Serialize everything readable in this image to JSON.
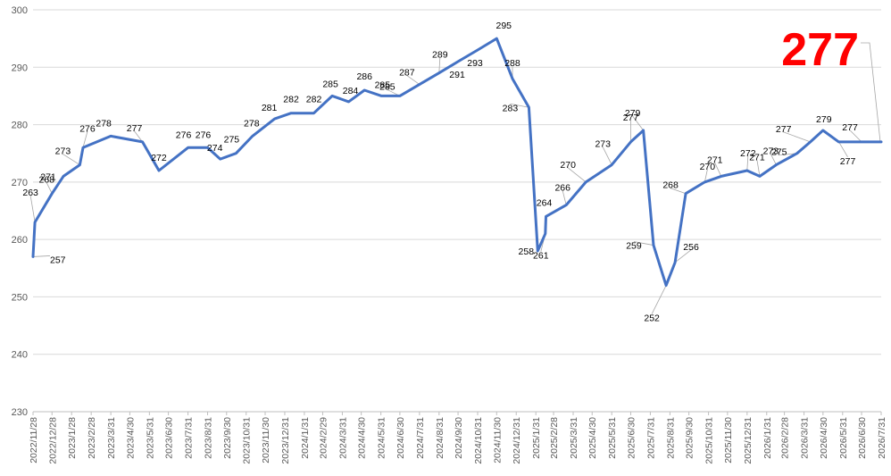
{
  "chart_data": {
    "type": "line",
    "ylim": [
      230,
      300
    ],
    "yticks": [
      230,
      240,
      250,
      260,
      270,
      280,
      290,
      300
    ],
    "grid": true,
    "line_color": "#4472C4",
    "highlight": {
      "text": "277",
      "color": "#FF0000"
    },
    "x_tick_labels": [
      "2022/11/28",
      "2022/12/28",
      "2023/1/28",
      "2023/2/28",
      "2023/3/31",
      "2023/4/30",
      "2023/5/31",
      "2023/6/30",
      "2023/7/31",
      "2023/8/31",
      "2023/9/30",
      "2023/10/31",
      "2023/11/30",
      "2023/12/31",
      "2024/1/31",
      "2024/2/29",
      "2024/3/31",
      "2024/4/30",
      "2024/5/31",
      "2024/6/30",
      "2024/7/31",
      "2024/8/31",
      "2024/9/30",
      "2024/10/31",
      "2024/11/30",
      "2024/12/31",
      "2025/1/31",
      "2025/2/28",
      "2025/3/31",
      "2025/4/30",
      "2025/5/31",
      "2025/6/30",
      "2025/7/31",
      "2025/8/31",
      "2025/9/30",
      "2025/10/31",
      "2025/11/30",
      "2025/12/31",
      "2026/1/31",
      "2026/2/28",
      "2026/3/31",
      "2026/4/30",
      "2026/5/31",
      "2026/6/30",
      "2026/7/31"
    ],
    "points": [
      {
        "x": "2022/11/28",
        "y": 257,
        "label": "257"
      },
      {
        "x": "2022/12/1",
        "y": 263,
        "label": "263"
      },
      {
        "x": "2022/12/28",
        "y": 268,
        "label": "268"
      },
      {
        "x": "2023/1/15",
        "y": 271,
        "label": "271"
      },
      {
        "x": "2023/2/10",
        "y": 273,
        "label": "273"
      },
      {
        "x": "2023/2/15",
        "y": 276,
        "label": "276"
      },
      {
        "x": "2023/3/31",
        "y": 278,
        "label": "278"
      },
      {
        "x": "2023/5/20",
        "y": 277,
        "label": "277"
      },
      {
        "x": "2023/6/15",
        "y": 272,
        "label": "272"
      },
      {
        "x": "2023/7/31",
        "y": 276,
        "label": "276"
      },
      {
        "x": "2023/8/31",
        "y": 276,
        "label": "276"
      },
      {
        "x": "2023/9/20",
        "y": 274,
        "label": "274"
      },
      {
        "x": "2023/10/15",
        "y": 275,
        "label": "275"
      },
      {
        "x": "2023/11/10",
        "y": 278,
        "label": "278"
      },
      {
        "x": "2023/12/15",
        "y": 281,
        "label": "281"
      },
      {
        "x": "2024/1/10",
        "y": 282,
        "label": "282"
      },
      {
        "x": "2024/2/15",
        "y": 282,
        "label": "282"
      },
      {
        "x": "2024/3/15",
        "y": 285,
        "label": "285"
      },
      {
        "x": "2024/4/10",
        "y": 284,
        "label": "284"
      },
      {
        "x": "2024/5/5",
        "y": 286,
        "label": "286"
      },
      {
        "x": "2024/6/1",
        "y": 285,
        "label": "285"
      },
      {
        "x": "2024/6/30",
        "y": 285,
        "label": "285"
      },
      {
        "x": "2024/7/31",
        "y": 287,
        "label": "287"
      },
      {
        "x": "2024/8/31",
        "y": 289,
        "label": "289"
      },
      {
        "x": "2024/9/30",
        "y": 291,
        "label": "291"
      },
      {
        "x": "2024/10/31",
        "y": 293,
        "label": "293"
      },
      {
        "x": "2024/11/30",
        "y": 295,
        "label": "295"
      },
      {
        "x": "2024/12/25",
        "y": 288,
        "label": "288"
      },
      {
        "x": "2025/1/20",
        "y": 283,
        "label": "283"
      },
      {
        "x": "2025/2/3",
        "y": 258,
        "label": "258"
      },
      {
        "x": "2025/2/15",
        "y": 261,
        "label": "261"
      },
      {
        "x": "2025/2/16",
        "y": 264,
        "label": "264"
      },
      {
        "x": "2025/3/20",
        "y": 266,
        "label": "266"
      },
      {
        "x": "2025/4/20",
        "y": 270,
        "label": "270"
      },
      {
        "x": "2025/5/31",
        "y": 273,
        "label": "273"
      },
      {
        "x": "2025/6/30",
        "y": 277,
        "label": "277"
      },
      {
        "x": "2025/7/20",
        "y": 279,
        "label": "279"
      },
      {
        "x": "2025/8/5",
        "y": 259,
        "label": "259"
      },
      {
        "x": "2025/8/25",
        "y": 252,
        "label": "252"
      },
      {
        "x": "2025/9/8",
        "y": 256,
        "label": "256"
      },
      {
        "x": "2025/9/25",
        "y": 268,
        "label": "268"
      },
      {
        "x": "2025/10/25",
        "y": 270,
        "label": "270"
      },
      {
        "x": "2025/11/20",
        "y": 271,
        "label": "271"
      },
      {
        "x": "2025/12/31",
        "y": 272,
        "label": "272"
      },
      {
        "x": "2026/1/20",
        "y": 271,
        "label": "271"
      },
      {
        "x": "2026/2/15",
        "y": 273,
        "label": "273"
      },
      {
        "x": "2026/3/20",
        "y": 275,
        "label": "275"
      },
      {
        "x": "2026/4/10",
        "y": 277,
        "label": "277"
      },
      {
        "x": "2026/4/30",
        "y": 279,
        "label": "279"
      },
      {
        "x": "2026/5/25",
        "y": 277,
        "label": "277"
      },
      {
        "x": "2026/6/30",
        "y": 277,
        "label": "277"
      },
      {
        "x": "2026/7/31",
        "y": 277,
        "label": "277"
      }
    ]
  }
}
